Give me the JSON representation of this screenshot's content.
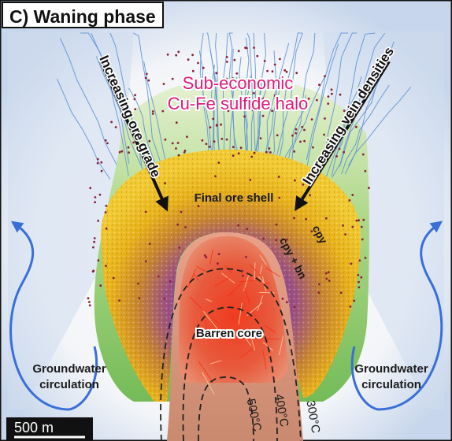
{
  "title": "C) Waning phase",
  "halo_line1": "Sub-economic",
  "halo_line2": "Cu-Fe sulfide halo",
  "arrow_left_label": "Increasing ore grade",
  "arrow_right_label": "Increasing vein densities",
  "ore_shell_label": "Final ore shell",
  "cpy_label": "cpy",
  "cpy_bn_label": "cpy + bn",
  "barren_core_label": "Barren core",
  "groundwater_left_line1": "Groundwater",
  "groundwater_left_line2": "circulation",
  "groundwater_right_line1": "Groundwater",
  "groundwater_right_line2": "circulation",
  "isotherm_500": "500°C",
  "isotherm_400": "400°C",
  "isotherm_300": "300°C",
  "scale_bar_label": "500 m",
  "colors": {
    "halo_text": "#e0197a",
    "groundwater_arrow": "#3a6fd8",
    "vein_blue": "#5b8fd4",
    "ore_shell": "#e8b21a",
    "green_zone": "#7cc35a",
    "barren_core": "#e2553a",
    "intrusion": "#c98a70"
  },
  "icons": {
    "groundwater_arrow": "curved-arrow-icon",
    "grade_arrow": "straight-arrow-icon"
  }
}
